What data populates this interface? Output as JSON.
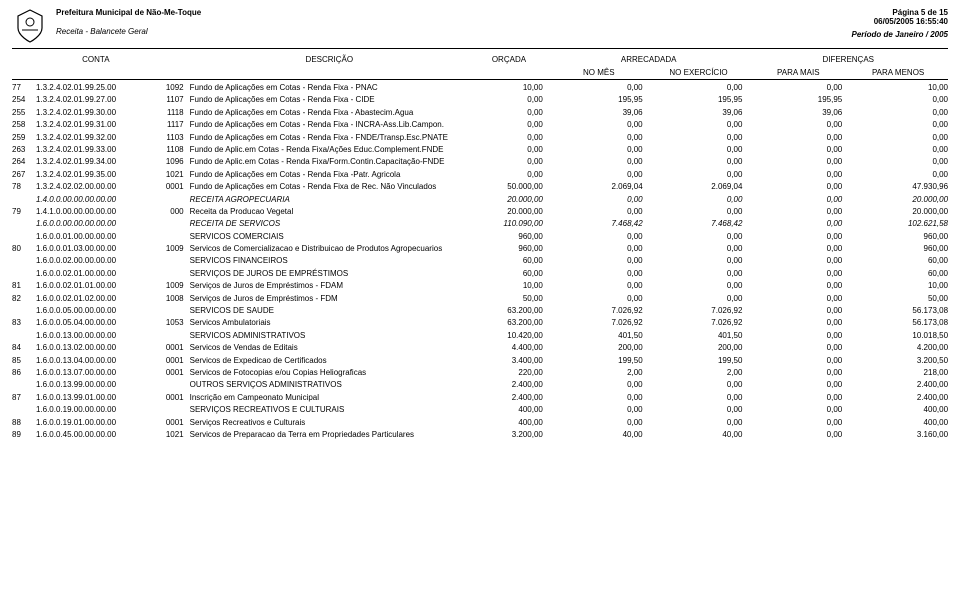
{
  "header": {
    "org": "Prefeitura Municipal de Não-Me-Toque",
    "subtitle": "Receita - Balancete Geral",
    "page": "Página 5 de 15",
    "datetime": "06/05/2005 16:55:40",
    "period": "Período de Janeiro / 2005"
  },
  "columns": {
    "conta": "CONTA",
    "descricao": "DESCRIÇÃO",
    "orcada": "ORÇADA",
    "arrecadada": "ARRECADADA",
    "diferencas": "DIFERENÇAS",
    "no_mes": "NO MÊS",
    "no_exercicio": "NO EXERCÍCIO",
    "para_mais": "PARA MAIS",
    "para_menos": "PARA MENOS"
  },
  "rows": [
    {
      "idx": "77",
      "conta": "1.3.2.4.02.01.99.25.00",
      "cod": "1092",
      "desc": "Fundo de Aplicações em Cotas - Renda Fixa - PNAC",
      "orc": "10,00",
      "mes": "0,00",
      "ex": "0,00",
      "mais": "0,00",
      "menos": "10,00",
      "italic": false
    },
    {
      "idx": "254",
      "conta": "1.3.2.4.02.01.99.27.00",
      "cod": "1107",
      "desc": "Fundo de Aplicações em Cotas - Renda Fixa - CIDE",
      "orc": "0,00",
      "mes": "195,95",
      "ex": "195,95",
      "mais": "195,95",
      "menos": "0,00",
      "italic": false
    },
    {
      "idx": "255",
      "conta": "1.3.2.4.02.01.99.30.00",
      "cod": "1118",
      "desc": "Fundo de Aplicações em Cotas - Renda Fixa - Abastecim.Agua",
      "orc": "0,00",
      "mes": "39,06",
      "ex": "39,06",
      "mais": "39,06",
      "menos": "0,00",
      "italic": false
    },
    {
      "idx": "258",
      "conta": "1.3.2.4.02.01.99.31.00",
      "cod": "1117",
      "desc": "Fundo de Aplicações em Cotas - Renda Fixa - INCRA-Ass.Lib.Campon.",
      "orc": "0,00",
      "mes": "0,00",
      "ex": "0,00",
      "mais": "0,00",
      "menos": "0,00",
      "italic": false
    },
    {
      "idx": "259",
      "conta": "1.3.2.4.02.01.99.32.00",
      "cod": "1103",
      "desc": "Fundo de Aplicações em Cotas - Renda Fixa - FNDE/Transp.Esc.PNATE",
      "orc": "0,00",
      "mes": "0,00",
      "ex": "0,00",
      "mais": "0,00",
      "menos": "0,00",
      "italic": false
    },
    {
      "idx": "263",
      "conta": "1.3.2.4.02.01.99.33.00",
      "cod": "1108",
      "desc": "Fundo de Aplic.em Cotas - Renda Fixa/Ações Educ.Complement.FNDE",
      "orc": "0,00",
      "mes": "0,00",
      "ex": "0,00",
      "mais": "0,00",
      "menos": "0,00",
      "italic": false
    },
    {
      "idx": "264",
      "conta": "1.3.2.4.02.01.99.34.00",
      "cod": "1096",
      "desc": "Fundo de Aplic.em Cotas - Renda Fixa/Form.Contin.Capacitação-FNDE",
      "orc": "0,00",
      "mes": "0,00",
      "ex": "0,00",
      "mais": "0,00",
      "menos": "0,00",
      "italic": false
    },
    {
      "idx": "267",
      "conta": "1.3.2.4.02.01.99.35.00",
      "cod": "1021",
      "desc": "Fundo de Aplicações em Cotas - Renda Fixa -Patr. Agricola",
      "orc": "0,00",
      "mes": "0,00",
      "ex": "0,00",
      "mais": "0,00",
      "menos": "0,00",
      "italic": false
    },
    {
      "idx": "78",
      "conta": "1.3.2.4.02.02.00.00.00",
      "cod": "0001",
      "desc": "Fundo de Aplicações em Cotas - Renda Fixa de Rec. Não Vinculados",
      "orc": "50.000,00",
      "mes": "2.069,04",
      "ex": "2.069,04",
      "mais": "0,00",
      "menos": "47.930,96",
      "italic": false
    },
    {
      "idx": "",
      "conta": "1.4.0.0.00.00.00.00.00",
      "cod": "",
      "desc": "RECEITA AGROPECUARIA",
      "orc": "20.000,00",
      "mes": "0,00",
      "ex": "0,00",
      "mais": "0,00",
      "menos": "20.000,00",
      "italic": true
    },
    {
      "idx": "79",
      "conta": "1.4.1.0.00.00.00.00.00",
      "cod": "000",
      "desc": "Receita da Producao Vegetal",
      "orc": "20.000,00",
      "mes": "0,00",
      "ex": "0,00",
      "mais": "0,00",
      "menos": "20.000,00",
      "italic": false
    },
    {
      "idx": "",
      "conta": "1.6.0.0.00.00.00.00.00",
      "cod": "",
      "desc": "RECEITA DE SERVICOS",
      "orc": "110.090,00",
      "mes": "7.468,42",
      "ex": "7.468,42",
      "mais": "0,00",
      "menos": "102.621,58",
      "italic": true
    },
    {
      "idx": "",
      "conta": "1.6.0.0.01.00.00.00.00",
      "cod": "",
      "desc": "SERVICOS COMERCIAIS",
      "orc": "960,00",
      "mes": "0,00",
      "ex": "0,00",
      "mais": "0,00",
      "menos": "960,00",
      "italic": false
    },
    {
      "idx": "80",
      "conta": "1.6.0.0.01.03.00.00.00",
      "cod": "1009",
      "desc": "Servicos de Comercializacao e Distribuicao de Produtos Agropecuarios",
      "orc": "960,00",
      "mes": "0,00",
      "ex": "0,00",
      "mais": "0,00",
      "menos": "960,00",
      "italic": false
    },
    {
      "idx": "",
      "conta": "1.6.0.0.02.00.00.00.00",
      "cod": "",
      "desc": "SERVICOS FINANCEIROS",
      "orc": "60,00",
      "mes": "0,00",
      "ex": "0,00",
      "mais": "0,00",
      "menos": "60,00",
      "italic": false
    },
    {
      "idx": "",
      "conta": "1.6.0.0.02.01.00.00.00",
      "cod": "",
      "desc": "SERVIÇOS DE JUROS DE EMPRÉSTIMOS",
      "orc": "60,00",
      "mes": "0,00",
      "ex": "0,00",
      "mais": "0,00",
      "menos": "60,00",
      "italic": false
    },
    {
      "idx": "81",
      "conta": "1.6.0.0.02.01.01.00.00",
      "cod": "1009",
      "desc": "Serviços de Juros de Empréstimos - FDAM",
      "orc": "10,00",
      "mes": "0,00",
      "ex": "0,00",
      "mais": "0,00",
      "menos": "10,00",
      "italic": false
    },
    {
      "idx": "82",
      "conta": "1.6.0.0.02.01.02.00.00",
      "cod": "1008",
      "desc": "Serviços de Juros de Empréstimos - FDM",
      "orc": "50,00",
      "mes": "0,00",
      "ex": "0,00",
      "mais": "0,00",
      "menos": "50,00",
      "italic": false
    },
    {
      "idx": "",
      "conta": "1.6.0.0.05.00.00.00.00",
      "cod": "",
      "desc": "SERVICOS DE SAUDE",
      "orc": "63.200,00",
      "mes": "7.026,92",
      "ex": "7.026,92",
      "mais": "0,00",
      "menos": "56.173,08",
      "italic": false
    },
    {
      "idx": "83",
      "conta": "1.6.0.0.05.04.00.00.00",
      "cod": "1053",
      "desc": "Servicos Ambulatoriais",
      "orc": "63.200,00",
      "mes": "7.026,92",
      "ex": "7.026,92",
      "mais": "0,00",
      "menos": "56.173,08",
      "italic": false
    },
    {
      "idx": "",
      "conta": "1.6.0.0.13.00.00.00.00",
      "cod": "",
      "desc": "SERVICOS ADMINISTRATIVOS",
      "orc": "10.420,00",
      "mes": "401,50",
      "ex": "401,50",
      "mais": "0,00",
      "menos": "10.018,50",
      "italic": false
    },
    {
      "idx": "84",
      "conta": "1.6.0.0.13.02.00.00.00",
      "cod": "0001",
      "desc": "Servicos de Vendas de Editais",
      "orc": "4.400,00",
      "mes": "200,00",
      "ex": "200,00",
      "mais": "0,00",
      "menos": "4.200,00",
      "italic": false
    },
    {
      "idx": "85",
      "conta": "1.6.0.0.13.04.00.00.00",
      "cod": "0001",
      "desc": "Servicos de Expedicao de Certificados",
      "orc": "3.400,00",
      "mes": "199,50",
      "ex": "199,50",
      "mais": "0,00",
      "menos": "3.200,50",
      "italic": false
    },
    {
      "idx": "86",
      "conta": "1.6.0.0.13.07.00.00.00",
      "cod": "0001",
      "desc": "Servicos de Fotocopias e/ou Copias Heliograficas",
      "orc": "220,00",
      "mes": "2,00",
      "ex": "2,00",
      "mais": "0,00",
      "menos": "218,00",
      "italic": false
    },
    {
      "idx": "",
      "conta": "1.6.0.0.13.99.00.00.00",
      "cod": "",
      "desc": "OUTROS SERVIÇOS ADMINISTRATIVOS",
      "orc": "2.400,00",
      "mes": "0,00",
      "ex": "0,00",
      "mais": "0,00",
      "menos": "2.400,00",
      "italic": false
    },
    {
      "idx": "87",
      "conta": "1.6.0.0.13.99.01.00.00",
      "cod": "0001",
      "desc": "Inscrição em Campeonato Municipal",
      "orc": "2.400,00",
      "mes": "0,00",
      "ex": "0,00",
      "mais": "0,00",
      "menos": "2.400,00",
      "italic": false
    },
    {
      "idx": "",
      "conta": "1.6.0.0.19.00.00.00.00",
      "cod": "",
      "desc": "SERVIÇOS RECREATIVOS E CULTURAIS",
      "orc": "400,00",
      "mes": "0,00",
      "ex": "0,00",
      "mais": "0,00",
      "menos": "400,00",
      "italic": false
    },
    {
      "idx": "88",
      "conta": "1.6.0.0.19.01.00.00.00",
      "cod": "0001",
      "desc": "Serviços Recreativos e Culturais",
      "orc": "400,00",
      "mes": "0,00",
      "ex": "0,00",
      "mais": "0,00",
      "menos": "400,00",
      "italic": false
    },
    {
      "idx": "89",
      "conta": "1.6.0.0.45.00.00.00.00",
      "cod": "1021",
      "desc": "Servicos de Preparacao da Terra em Propriedades Particulares",
      "orc": "3.200,00",
      "mes": "40,00",
      "ex": "40,00",
      "mais": "0,00",
      "menos": "3.160,00",
      "italic": false
    }
  ]
}
